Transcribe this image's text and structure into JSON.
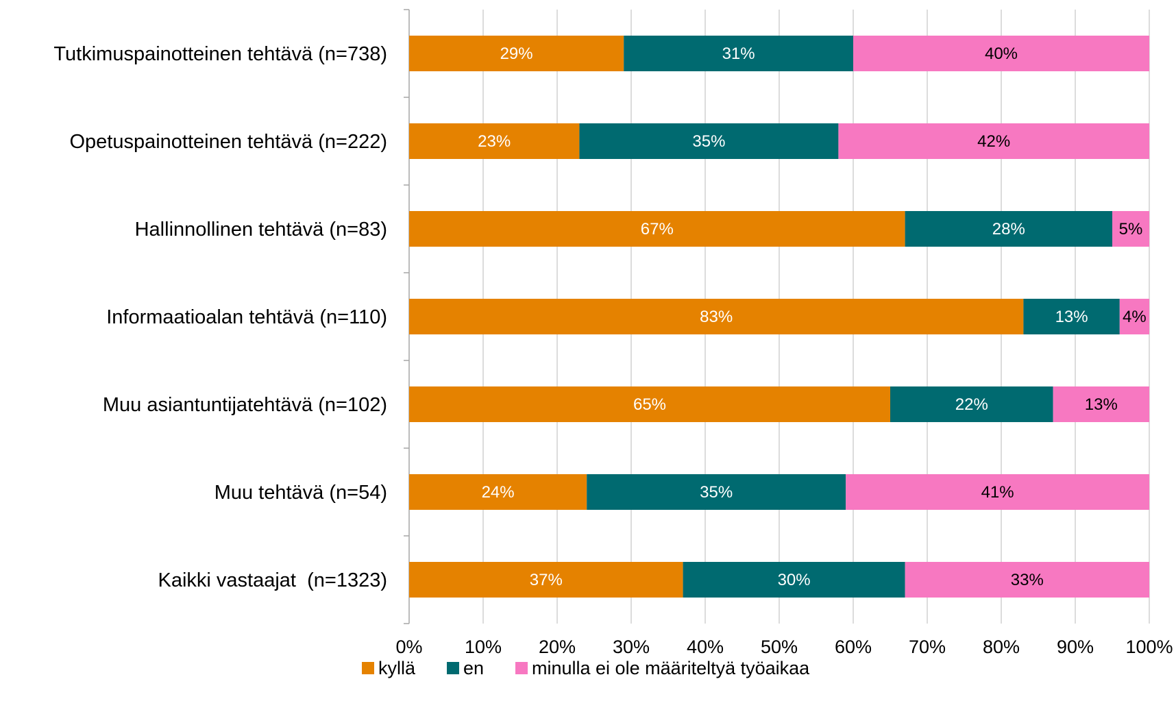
{
  "chart_data": {
    "type": "bar",
    "orientation": "horizontal",
    "stacked": "percent",
    "categories": [
      "Tutkimuspainotteinen tehtävä (n=738)",
      "Opetuspainotteinen tehtävä (n=222)",
      "Hallinnollinen tehtävä (n=83)",
      "Informaatioalan tehtävä (n=110)",
      "Muu asiantuntijatehtävä (n=102)",
      "Muu tehtävä (n=54)",
      "Kaikki vastaajat  (n=1323)"
    ],
    "series": [
      {
        "name": "kyllä",
        "color": "#E58200",
        "label_color": "#FFFFFF",
        "values": [
          29,
          23,
          67,
          83,
          65,
          24,
          37
        ]
      },
      {
        "name": "en",
        "color": "#006A70",
        "label_color": "#FFFFFF",
        "values": [
          31,
          35,
          28,
          13,
          22,
          35,
          30
        ]
      },
      {
        "name": "minulla ei ole määriteltyä työaikaa",
        "color": "#F778C1",
        "label_color": "#000000",
        "values": [
          40,
          42,
          5,
          4,
          13,
          41,
          33
        ]
      }
    ],
    "xlim": [
      0,
      100
    ],
    "xticks": [
      "0%",
      "10%",
      "20%",
      "30%",
      "40%",
      "50%",
      "60%",
      "70%",
      "80%",
      "90%",
      "100%"
    ],
    "grid": "vertical",
    "legend": "bottom",
    "value_suffix": "%"
  }
}
